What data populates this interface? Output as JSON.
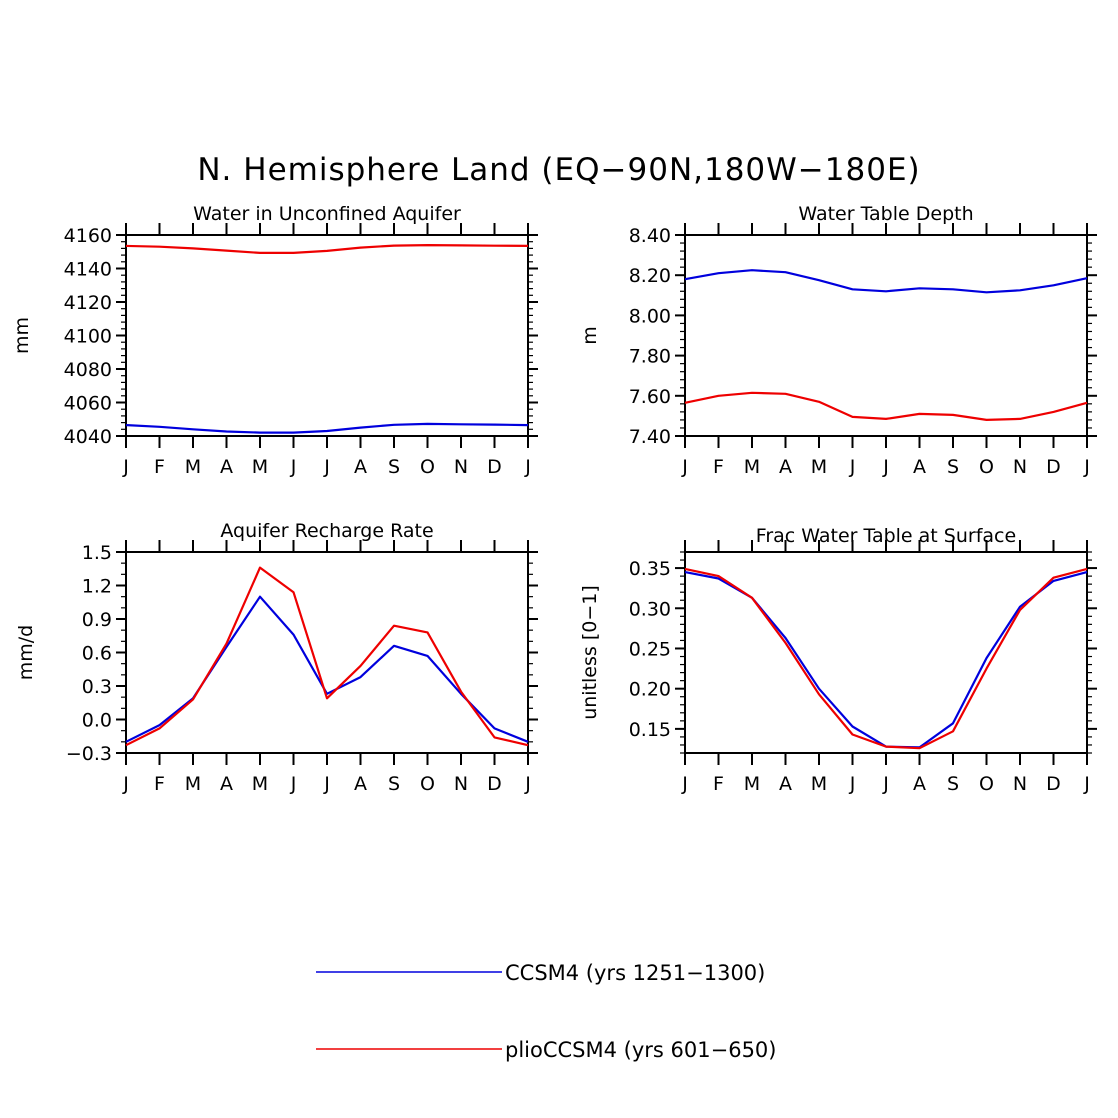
{
  "title": "N. Hemisphere Land (EQ−90N,180W−180E)",
  "months": [
    "J",
    "F",
    "M",
    "A",
    "M",
    "J",
    "J",
    "A",
    "S",
    "O",
    "N",
    "D",
    "J"
  ],
  "colors": {
    "CCSM4": "#0000dd",
    "plioCCSM4": "#ee0000"
  },
  "legend": [
    {
      "key": "CCSM4",
      "label": "CCSM4 (yrs 1251−1300)"
    },
    {
      "key": "plioCCSM4",
      "label": "plioCCSM4 (yrs 601−650)"
    }
  ],
  "chart_data": [
    {
      "type": "line",
      "title": "Water in Unconfined Aquifer",
      "ylabel": "mm",
      "ylim": [
        4040,
        4160
      ],
      "yticks": [
        4040,
        4060,
        4080,
        4100,
        4120,
        4140,
        4160
      ],
      "ytick_labels": [
        "4040",
        "4060",
        "4080",
        "4100",
        "4120",
        "4140",
        "4160"
      ],
      "x": [
        "J",
        "F",
        "M",
        "A",
        "M",
        "J",
        "J",
        "A",
        "S",
        "O",
        "N",
        "D",
        "J"
      ],
      "series": [
        {
          "name": "CCSM4",
          "values": [
            4046.5,
            4045.5,
            4044,
            4042.7,
            4042,
            4042,
            4043,
            4045,
            4046.7,
            4047.2,
            4047,
            4046.8,
            4046.5
          ]
        },
        {
          "name": "plioCCSM4",
          "values": [
            4153.5,
            4153,
            4152,
            4150.7,
            4149.3,
            4149.3,
            4150.5,
            4152.5,
            4153.7,
            4154,
            4153.8,
            4153.6,
            4153.5
          ]
        }
      ]
    },
    {
      "type": "line",
      "title": "Water Table Depth",
      "ylabel": "m",
      "ylim": [
        7.4,
        8.4
      ],
      "yticks": [
        7.4,
        7.6,
        7.8,
        8.0,
        8.2,
        8.4
      ],
      "ytick_labels": [
        "7.40",
        "7.60",
        "7.80",
        "8.00",
        "8.20",
        "8.40"
      ],
      "x": [
        "J",
        "F",
        "M",
        "A",
        "M",
        "J",
        "J",
        "A",
        "S",
        "O",
        "N",
        "D",
        "J"
      ],
      "series": [
        {
          "name": "CCSM4",
          "values": [
            8.18,
            8.21,
            8.225,
            8.215,
            8.175,
            8.13,
            8.12,
            8.135,
            8.13,
            8.115,
            8.125,
            8.15,
            8.185
          ]
        },
        {
          "name": "plioCCSM4",
          "values": [
            7.565,
            7.6,
            7.615,
            7.61,
            7.57,
            7.495,
            7.485,
            7.51,
            7.505,
            7.48,
            7.485,
            7.52,
            7.565
          ]
        }
      ]
    },
    {
      "type": "line",
      "title": "Aquifer Recharge Rate",
      "ylabel": "mm/d",
      "ylim": [
        -0.3,
        1.5
      ],
      "yticks": [
        -0.3,
        0.0,
        0.3,
        0.6,
        0.9,
        1.2,
        1.5
      ],
      "ytick_labels": [
        "−0.3",
        "0.0",
        "0.3",
        "0.6",
        "0.9",
        "1.2",
        "1.5"
      ],
      "x": [
        "J",
        "F",
        "M",
        "A",
        "M",
        "J",
        "J",
        "A",
        "S",
        "O",
        "N",
        "D",
        "J"
      ],
      "series": [
        {
          "name": "CCSM4",
          "values": [
            -0.2,
            -0.05,
            0.19,
            0.65,
            1.1,
            0.76,
            0.23,
            0.38,
            0.66,
            0.57,
            0.23,
            -0.08,
            -0.2
          ]
        },
        {
          "name": "plioCCSM4",
          "values": [
            -0.23,
            -0.08,
            0.18,
            0.68,
            1.36,
            1.14,
            0.19,
            0.48,
            0.84,
            0.78,
            0.25,
            -0.16,
            -0.23
          ]
        }
      ]
    },
    {
      "type": "line",
      "title": "Frac Water Table at Surface",
      "ylabel": "unitless [0−1]",
      "ylim": [
        0.12,
        0.37
      ],
      "yticks": [
        0.15,
        0.2,
        0.25,
        0.3,
        0.35
      ],
      "ytick_labels": [
        "0.15",
        "0.20",
        "0.25",
        "0.30",
        "0.35"
      ],
      "x": [
        "J",
        "F",
        "M",
        "A",
        "M",
        "J",
        "J",
        "A",
        "S",
        "O",
        "N",
        "D",
        "J"
      ],
      "series": [
        {
          "name": "CCSM4",
          "values": [
            0.345,
            0.337,
            0.313,
            0.263,
            0.2,
            0.153,
            0.128,
            0.127,
            0.157,
            0.238,
            0.302,
            0.334,
            0.345
          ]
        },
        {
          "name": "plioCCSM4",
          "values": [
            0.349,
            0.34,
            0.313,
            0.257,
            0.193,
            0.143,
            0.128,
            0.126,
            0.147,
            0.225,
            0.298,
            0.338,
            0.349
          ]
        }
      ]
    }
  ]
}
